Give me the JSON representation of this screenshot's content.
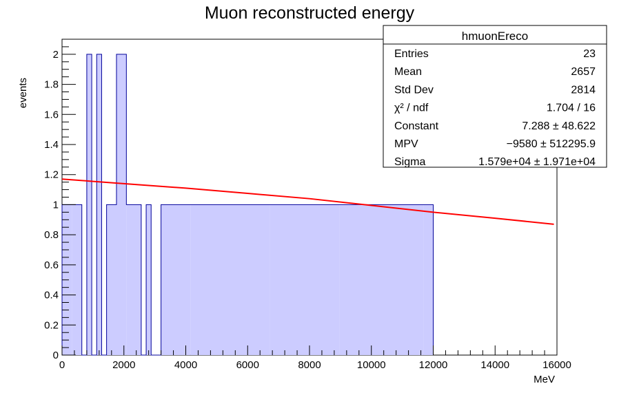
{
  "chart_data": {
    "type": "bar",
    "title": "Muon reconstructed energy",
    "xlabel": "MeV",
    "ylabel": "events",
    "xlim": [
      0,
      16000
    ],
    "ylim": [
      0,
      2.1
    ],
    "bin_width": 320,
    "x_ticks": [
      0,
      2000,
      4000,
      6000,
      8000,
      10000,
      12000,
      14000,
      16000
    ],
    "y_ticks": [
      0,
      0.2,
      0.4,
      0.6,
      0.8,
      1,
      1.2,
      1.4,
      1.6,
      1.8,
      2
    ],
    "bins": [
      {
        "x": 0,
        "value": 1
      },
      {
        "x": 320,
        "value": 1
      },
      {
        "x": 640,
        "value": 0
      },
      {
        "x": 800,
        "value": 2
      },
      {
        "x": 960,
        "value": 0
      },
      {
        "x": 1120,
        "value": 2
      },
      {
        "x": 1280,
        "value": 0
      },
      {
        "x": 1440,
        "value": 1
      },
      {
        "x": 1760,
        "value": 2
      },
      {
        "x": 2080,
        "value": 1
      },
      {
        "x": 2560,
        "value": 0
      },
      {
        "x": 2720,
        "value": 1
      },
      {
        "x": 2880,
        "value": 0
      },
      {
        "x": 3200,
        "value": 1
      },
      {
        "x": 4160,
        "value": 1
      },
      {
        "x": 6720,
        "value": 1
      },
      {
        "x": 8960,
        "value": 1
      },
      {
        "x": 11680,
        "value": 1
      }
    ],
    "fit": {
      "color": "#ff0000",
      "x": [
        0,
        2000,
        4000,
        6000,
        8000,
        10000,
        12000,
        14000,
        15900
      ],
      "y": [
        1.17,
        1.14,
        1.11,
        1.075,
        1.04,
        0.995,
        0.95,
        0.91,
        0.87
      ]
    },
    "fill_color": "#ccccff",
    "line_color": "#000099"
  },
  "stats": {
    "title": "hmuonEreco",
    "rows": [
      {
        "label": "Entries",
        "value": "23"
      },
      {
        "label": "Mean",
        "value": "2657"
      },
      {
        "label": "Std Dev",
        "value": "2814"
      },
      {
        "label": "χ² / ndf",
        "value": "1.704 / 16"
      },
      {
        "label": "Constant",
        "value": "7.288 ± 48.622"
      },
      {
        "label": "MPV",
        "value": "−9580 ± 512295.9"
      },
      {
        "label": "Sigma",
        "value": "1.579e+04 ± 1.971e+04"
      }
    ]
  }
}
